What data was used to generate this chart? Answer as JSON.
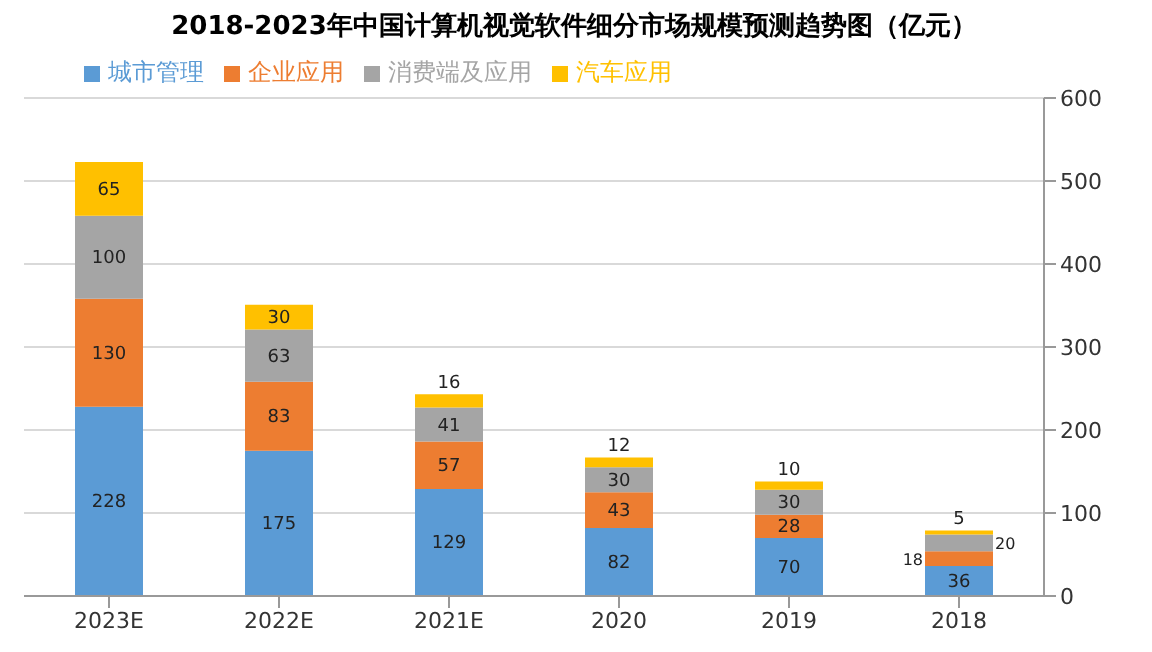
{
  "chart_data": {
    "type": "bar",
    "title": "2018-2023年中国计算机视觉软件细分市场规模预测趋势图（亿元）",
    "categories": [
      "2023E",
      "2022E",
      "2021E",
      "2020",
      "2019",
      "2018"
    ],
    "series": [
      {
        "name": "城市管理",
        "color": "#5b9bd5",
        "values": [
          228,
          175,
          129,
          82,
          70,
          36
        ]
      },
      {
        "name": "企业应用",
        "color": "#ed7d31",
        "values": [
          130,
          83,
          57,
          43,
          28,
          18
        ]
      },
      {
        "name": "消费端及应用",
        "color": "#a5a5a5",
        "values": [
          100,
          63,
          41,
          30,
          30,
          20
        ]
      },
      {
        "name": "汽车应用",
        "color": "#ffc000",
        "values": [
          65,
          30,
          16,
          12,
          10,
          5
        ]
      }
    ],
    "stacked": true,
    "ylim": [
      0,
      600
    ],
    "yticks": [
      0,
      100,
      200,
      300,
      400,
      500,
      600
    ],
    "grid": "y",
    "legend": "top left",
    "data_labels": true
  }
}
